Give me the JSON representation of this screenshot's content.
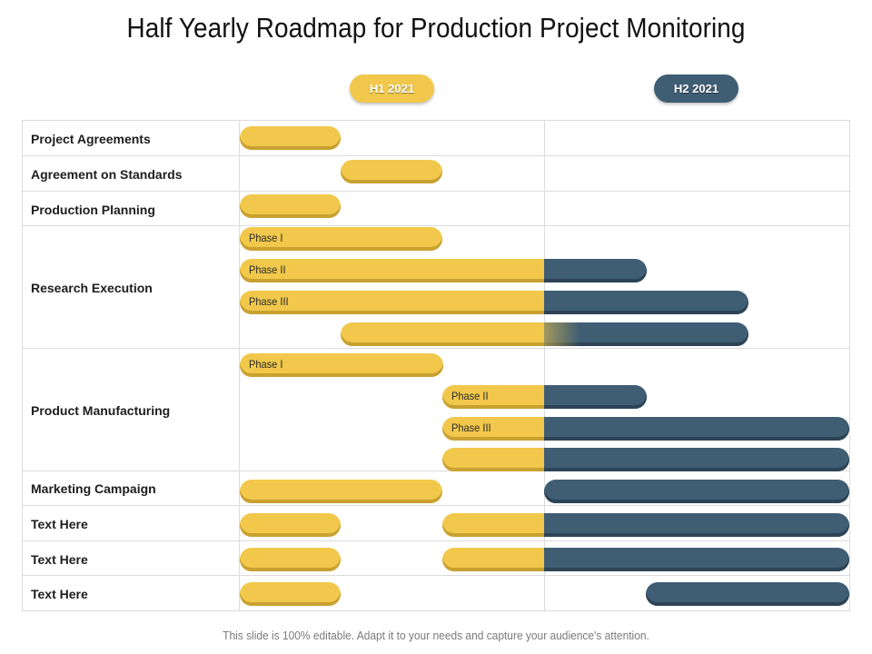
{
  "title": "Half Yearly Roadmap for Production Project Monitoring",
  "periods": [
    "H1 2021",
    "H2 2021"
  ],
  "rows": [
    "Project Agreements",
    "Agreement on Standards",
    "Production Planning",
    "Research Execution",
    "Product Manufacturing",
    "Marketing Campaign",
    "Text Here",
    "Text Here",
    "Text Here"
  ],
  "phases": [
    "Phase I",
    "Phase II",
    "Phase III"
  ],
  "colors": {
    "h1": "#f1c84b",
    "h2": "#3f5d73"
  },
  "footer": "This slide is 100% editable. Adapt it to your needs and capture your audience's attention."
}
